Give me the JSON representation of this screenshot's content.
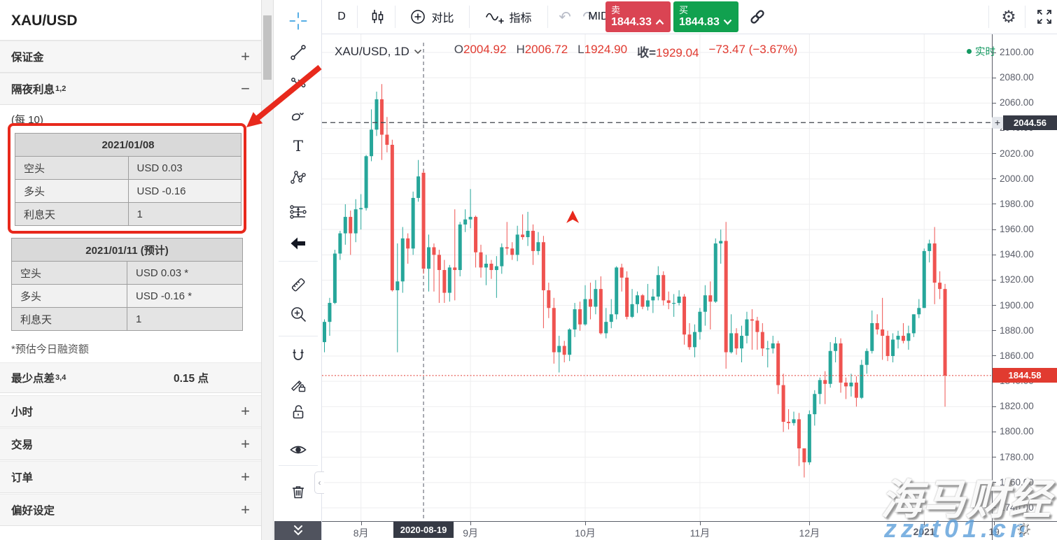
{
  "sidebar": {
    "title": "XAU/USD",
    "sections": [
      {
        "label": "保证金",
        "sup": ""
      },
      {
        "label": "隔夜利息",
        "sup": "1,2"
      }
    ],
    "per_label": "(每 10)",
    "table_current": {
      "header": "2021/01/08",
      "rows": [
        [
          "空头",
          "USD 0.03"
        ],
        [
          "多头",
          "USD -0.16"
        ],
        [
          "利息天",
          "1"
        ]
      ]
    },
    "table_forecast": {
      "header": "2021/01/11 (预计)",
      "rows": [
        [
          "空头",
          "USD 0.03 *"
        ],
        [
          "多头",
          "USD -0.16 *"
        ],
        [
          "利息天",
          "1"
        ]
      ]
    },
    "footnote": "*预估今日融资额",
    "spread": {
      "label": "最少点差",
      "sup": "3,4",
      "value": "0.15 点"
    },
    "collapsed_sections": [
      "小时",
      "交易",
      "订单",
      "偏好设定"
    ]
  },
  "toolbar": {
    "interval_label": "D",
    "compare_label": "对比",
    "indicators_label": "指标",
    "mid_label": "MID",
    "sell": {
      "label": "卖",
      "price": "1844.33"
    },
    "buy": {
      "label": "买",
      "price": "1844.83"
    }
  },
  "legend": {
    "symbol": "XAU/USD, 1D",
    "o_label": "O",
    "o": "2004.92",
    "h_label": "H",
    "h": "2006.72",
    "l_label": "L",
    "l": "1924.90",
    "close_label": "收=",
    "close": "1929.04",
    "change": "−73.47 (−3.67%)"
  },
  "status": {
    "realtime_label": "实时"
  },
  "price_axis": {
    "ticks": [
      "2100.00",
      "2080.00",
      "2060.00",
      "2040.00",
      "2020.00",
      "2000.00",
      "1980.00",
      "1960.00",
      "1940.00",
      "1920.00",
      "1900.00",
      "1880.00",
      "1860.00",
      "1840.00",
      "1820.00",
      "1800.00",
      "1780.00",
      "1760.00",
      "1740.00"
    ],
    "alert_label": "2044.56",
    "last_label": "1844.58"
  },
  "time_axis": {
    "crosshair_label": "2020-08-19",
    "extra_tick": "19"
  },
  "watermark": {
    "line1": "海马财经",
    "line2": "zzrt01.cn"
  },
  "colors": {
    "up": "#26a69a",
    "down": "#ef5350",
    "sell_btn": "#da4453",
    "buy_btn": "#11a14f",
    "annotation_red": "#e8291c",
    "badge_dark": "#363a45",
    "last_price_red": "#e13b30",
    "realtime_green": "#149961",
    "grid": "#eeeeef",
    "axis_text": "#5a5d68"
  },
  "chart_data": {
    "type": "candlestick",
    "symbol": "XAU/USD",
    "interval": "1D",
    "ylim": [
      1740,
      2100
    ],
    "y_step": 20,
    "alert_price": 2044.56,
    "last_price": 1844.58,
    "crosshair_index": 19,
    "marker": {
      "index": 47.6,
      "price": 1969
    },
    "month_labels": [
      {
        "text": "8月",
        "index": 7
      },
      {
        "text": "9月",
        "index": 28
      },
      {
        "text": "10月",
        "index": 50
      },
      {
        "text": "11月",
        "index": 72
      },
      {
        "text": "12月",
        "index": 93
      },
      {
        "text": "2021",
        "index": 115,
        "bold": true
      }
    ],
    "candles": [
      [
        1871,
        1889,
        1863,
        1887
      ],
      [
        1887,
        1906,
        1876,
        1902
      ],
      [
        1902,
        1944,
        1901,
        1941
      ],
      [
        1941,
        1959,
        1936,
        1957
      ],
      [
        1957,
        1980,
        1948,
        1970
      ],
      [
        1970,
        1975,
        1940,
        1957
      ],
      [
        1957,
        1984,
        1950,
        1976
      ],
      [
        1976,
        1988,
        1960,
        1977
      ],
      [
        1977,
        2019,
        1975,
        2018
      ],
      [
        2018,
        2055,
        2014,
        2039
      ],
      [
        2039,
        2069,
        2034,
        2063
      ],
      [
        2063,
        2075,
        2015,
        2035
      ],
      [
        2035,
        2049,
        2021,
        2027
      ],
      [
        2027,
        2031,
        1911,
        1912
      ],
      [
        1912,
        1949,
        1863,
        1919
      ],
      [
        1919,
        1962,
        1910,
        1953
      ],
      [
        1953,
        1957,
        1933,
        1945
      ],
      [
        1945,
        1990,
        1940,
        1985
      ],
      [
        1985,
        2015,
        1982,
        2002
      ],
      [
        2004.92,
        2006.72,
        1924.9,
        1929.04
      ],
      [
        1929,
        1956,
        1911,
        1946
      ],
      [
        1946,
        1949,
        1911,
        1940
      ],
      [
        1940,
        1944,
        1902,
        1928
      ],
      [
        1928,
        1936,
        1902,
        1910
      ],
      [
        1910,
        1932,
        1903,
        1930
      ],
      [
        1930,
        1976,
        1904,
        1928
      ],
      [
        1928,
        1966,
        1923,
        1964
      ],
      [
        1964,
        1976,
        1958,
        1968
      ],
      [
        1968,
        1992,
        1961,
        1970
      ],
      [
        1970,
        1971,
        1930,
        1942
      ],
      [
        1942,
        1948,
        1922,
        1930
      ],
      [
        1930,
        1940,
        1916,
        1933
      ],
      [
        1933,
        1936,
        1921,
        1928
      ],
      [
        1928,
        1939,
        1906,
        1931
      ],
      [
        1931,
        1949,
        1925,
        1946
      ],
      [
        1946,
        1966,
        1940,
        1945
      ],
      [
        1945,
        1950,
        1936,
        1940
      ],
      [
        1940,
        1963,
        1935,
        1956
      ],
      [
        1956,
        1972,
        1952,
        1954
      ],
      [
        1954,
        1974,
        1947,
        1959
      ],
      [
        1959,
        1964,
        1932,
        1943
      ],
      [
        1943,
        1958,
        1940,
        1950
      ],
      [
        1950,
        1955,
        1882,
        1912
      ],
      [
        1912,
        1918,
        1890,
        1898
      ],
      [
        1898,
        1906,
        1854,
        1863
      ],
      [
        1863,
        1876,
        1847,
        1868
      ],
      [
        1868,
        1872,
        1855,
        1861
      ],
      [
        1861,
        1882,
        1856,
        1881
      ],
      [
        1881,
        1902,
        1875,
        1897
      ],
      [
        1897,
        1903,
        1880,
        1885
      ],
      [
        1885,
        1916,
        1884,
        1905
      ],
      [
        1905,
        1918,
        1889,
        1899
      ],
      [
        1899,
        1920,
        1893,
        1913
      ],
      [
        1913,
        1923,
        1877,
        1878
      ],
      [
        1878,
        1898,
        1874,
        1887
      ],
      [
        1887,
        1905,
        1882,
        1893
      ],
      [
        1893,
        1931,
        1889,
        1930
      ],
      [
        1930,
        1933,
        1911,
        1922
      ],
      [
        1922,
        1927,
        1889,
        1891
      ],
      [
        1891,
        1913,
        1890,
        1901
      ],
      [
        1901,
        1911,
        1894,
        1908
      ],
      [
        1908,
        1909,
        1897,
        1899
      ],
      [
        1899,
        1917,
        1896,
        1904
      ],
      [
        1904,
        1913,
        1894,
        1907
      ],
      [
        1907,
        1931,
        1904,
        1924
      ],
      [
        1924,
        1927,
        1900,
        1904
      ],
      [
        1904,
        1911,
        1897,
        1902
      ],
      [
        1902,
        1909,
        1891,
        1902
      ],
      [
        1902,
        1912,
        1900,
        1907
      ],
      [
        1907,
        1909,
        1869,
        1877
      ],
      [
        1877,
        1886,
        1865,
        1867
      ],
      [
        1867,
        1885,
        1859,
        1879
      ],
      [
        1879,
        1898,
        1873,
        1895
      ],
      [
        1895,
        1916,
        1884,
        1908
      ],
      [
        1908,
        1919,
        1881,
        1903
      ],
      [
        1903,
        1953,
        1902,
        1949
      ],
      [
        1949,
        1960,
        1933,
        1951
      ],
      [
        1951,
        1966,
        1850,
        1863
      ],
      [
        1863,
        1893,
        1862,
        1878
      ],
      [
        1878,
        1882,
        1861,
        1866
      ],
      [
        1866,
        1884,
        1855,
        1876
      ],
      [
        1876,
        1895,
        1870,
        1889
      ],
      [
        1889,
        1897,
        1865,
        1888
      ],
      [
        1888,
        1891,
        1865,
        1879
      ],
      [
        1879,
        1886,
        1860,
        1866
      ],
      [
        1866,
        1872,
        1851,
        1866
      ],
      [
        1866,
        1876,
        1862,
        1870
      ],
      [
        1870,
        1872,
        1830,
        1837
      ],
      [
        1837,
        1846,
        1800,
        1808
      ],
      [
        1808,
        1818,
        1802,
        1807
      ],
      [
        1807,
        1816,
        1805,
        1810
      ],
      [
        1810,
        1815,
        1773,
        1787
      ],
      [
        1787,
        1787,
        1764,
        1776
      ],
      [
        1776,
        1817,
        1774,
        1814
      ],
      [
        1814,
        1833,
        1805,
        1830
      ],
      [
        1830,
        1843,
        1822,
        1841
      ],
      [
        1841,
        1848,
        1822,
        1838
      ],
      [
        1838,
        1871,
        1835,
        1864
      ],
      [
        1864,
        1875,
        1855,
        1870
      ],
      [
        1870,
        1874,
        1831,
        1839
      ],
      [
        1839,
        1843,
        1826,
        1836
      ],
      [
        1836,
        1846,
        1828,
        1839
      ],
      [
        1839,
        1844,
        1820,
        1827
      ],
      [
        1827,
        1857,
        1826,
        1853
      ],
      [
        1853,
        1866,
        1846,
        1864
      ],
      [
        1864,
        1896,
        1862,
        1886
      ],
      [
        1886,
        1893,
        1877,
        1881
      ],
      [
        1881,
        1906,
        1857,
        1876
      ],
      [
        1876,
        1880,
        1856,
        1860
      ],
      [
        1860,
        1878,
        1855,
        1873
      ],
      [
        1873,
        1880,
        1866,
        1876
      ],
      [
        1876,
        1886,
        1870,
        1872
      ],
      [
        1872,
        1884,
        1865,
        1878
      ],
      [
        1878,
        1893,
        1875,
        1893
      ],
      [
        1893,
        1905,
        1890,
        1898
      ],
      [
        1898,
        1945,
        1898,
        1943
      ],
      [
        1943,
        1952,
        1934,
        1949
      ],
      [
        1949,
        1962,
        1901,
        1918
      ],
      [
        1918,
        1927,
        1905,
        1913
      ],
      [
        1913,
        1917,
        1820,
        1844.58
      ]
    ]
  }
}
